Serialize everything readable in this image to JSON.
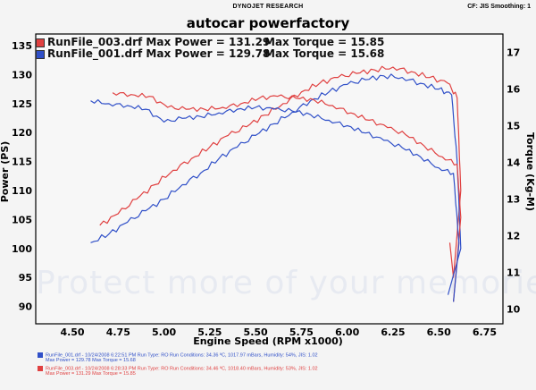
{
  "header": {
    "brand": "DYNOJET RESEARCH",
    "settings": "CF: JIS  Smoothing: 1"
  },
  "chart_data": {
    "type": "line",
    "title": "autocar powerfactory",
    "xlabel": "Engine Speed (RPM x1000)",
    "ylabel": "Power (PS)",
    "y2label": "Torque (Kg-M)",
    "xlim": [
      4.3,
      6.85
    ],
    "ylim": [
      87,
      137
    ],
    "y2lim": [
      9.6,
      17.5
    ],
    "x_ticks": [
      "4.50",
      "4.75",
      "5.00",
      "5.25",
      "5.50",
      "5.75",
      "6.00",
      "6.25",
      "6.50",
      "6.75"
    ],
    "y_ticks": [
      "90",
      "95",
      "100",
      "105",
      "110",
      "115",
      "120",
      "125",
      "130",
      "135"
    ],
    "y2_ticks": [
      "10",
      "11",
      "12",
      "13",
      "14",
      "15",
      "16",
      "17"
    ],
    "grid": true,
    "colors": {
      "run003": "#e04040",
      "run001": "#3050c8"
    },
    "series": [
      {
        "name": "RunFile_003.drf Power",
        "color": "#e04040",
        "axis": "left",
        "x": [
          4.65,
          4.75,
          4.85,
          4.95,
          5.05,
          5.15,
          5.25,
          5.35,
          5.45,
          5.55,
          5.65,
          5.75,
          5.85,
          5.95,
          6.05,
          6.15,
          6.25,
          6.35,
          6.45,
          6.55,
          6.6,
          6.62,
          6.58,
          6.56
        ],
        "y": [
          104,
          106,
          108.5,
          111,
          113.5,
          115.5,
          117.5,
          119.5,
          121,
          123,
          125,
          127,
          128.5,
          129.5,
          130.2,
          130.8,
          131.29,
          130.5,
          129.5,
          128.5,
          126,
          110,
          95,
          101
        ]
      },
      {
        "name": "RunFile_001.drf Power",
        "color": "#3050c8",
        "axis": "left",
        "x": [
          4.6,
          4.7,
          4.8,
          4.9,
          5.0,
          5.1,
          5.2,
          5.3,
          5.4,
          5.5,
          5.6,
          5.7,
          5.8,
          5.9,
          6.0,
          6.1,
          6.2,
          6.3,
          6.4,
          6.5,
          6.57,
          6.6,
          6.62,
          6.55
        ],
        "y": [
          101,
          102.5,
          104.5,
          106.5,
          108.5,
          111,
          113,
          115.5,
          117.5,
          119.5,
          121.5,
          123.5,
          125.5,
          127,
          128.3,
          129.1,
          129.78,
          129.5,
          128.5,
          127.5,
          126.5,
          115,
          100,
          92
        ]
      },
      {
        "name": "RunFile_003.drf Torque",
        "color": "#e04040",
        "axis": "right",
        "x": [
          4.72,
          4.82,
          4.92,
          5.02,
          5.12,
          5.22,
          5.32,
          5.42,
          5.52,
          5.62,
          5.72,
          5.82,
          5.92,
          6.02,
          6.12,
          6.22,
          6.32,
          6.42,
          6.52,
          6.6,
          6.62,
          6.58
        ],
        "y": [
          15.9,
          15.85,
          15.8,
          15.5,
          15.45,
          15.45,
          15.5,
          15.6,
          15.75,
          15.8,
          15.75,
          15.7,
          15.55,
          15.35,
          15.15,
          14.95,
          14.75,
          14.45,
          14.15,
          13.95,
          12.5,
          10.2
        ]
      },
      {
        "name": "RunFile_001.drf Torque",
        "color": "#3050c8",
        "axis": "right",
        "x": [
          4.6,
          4.7,
          4.8,
          4.9,
          5.0,
          5.1,
          5.2,
          5.3,
          5.4,
          5.5,
          5.6,
          5.7,
          5.8,
          5.9,
          6.0,
          6.1,
          6.2,
          6.3,
          6.4,
          6.5,
          6.58,
          6.61,
          6.58
        ],
        "y": [
          15.68,
          15.6,
          15.55,
          15.45,
          15.1,
          15.2,
          15.25,
          15.35,
          15.45,
          15.5,
          15.45,
          15.4,
          15.3,
          15.15,
          15.0,
          14.8,
          14.6,
          14.4,
          14.15,
          13.85,
          13.7,
          11.8,
          10.2
        ]
      }
    ],
    "legend": [
      {
        "swatch": "#e04040",
        "file": "RunFile_003.drf",
        "power": "Max Power = 131.29",
        "torque": "Max Torque = 15.85"
      },
      {
        "swatch": "#3050c8",
        "file": "RunFile_001.drf",
        "power": "Max Power = 129.78",
        "torque": "Max Torque = 15.68"
      }
    ]
  },
  "footer": [
    {
      "color": "#3050c8",
      "line1": "RunFile_001.drf - 10/24/2008 6:22:51 PM   Run Type: RO  Run Conditions: 34.36 ºC, 1017.97 mBars,  Humidity:  54%, JIS: 1.02",
      "line2": "Max Power = 129.78   Max Torque = 15.68"
    },
    {
      "color": "#e04040",
      "line1": "RunFile_003.drf - 10/24/2008 6:28:33 PM   Run Type: RO  Run Conditions: 34.46 ºC, 1018.40 mBars,  Humidity:  53%, JIS: 1.02",
      "line2": "Max Power = 131.29   Max Torque = 15.85"
    }
  ],
  "watermark": "Protect more of your memories for less!"
}
